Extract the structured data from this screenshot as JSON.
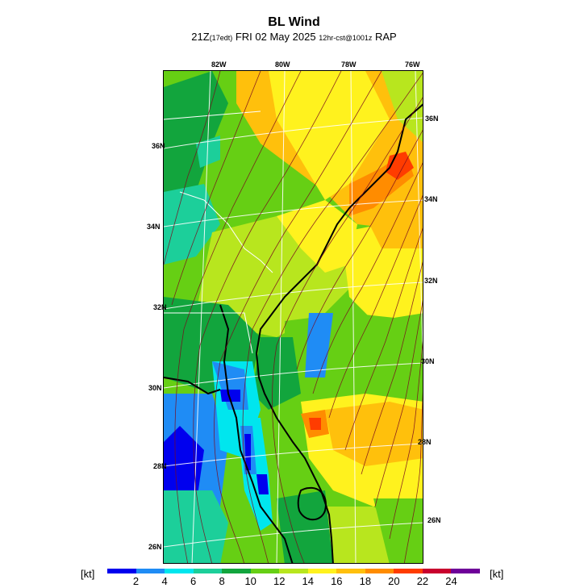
{
  "title": "BL Wind",
  "subtitle": {
    "valid": "21Z",
    "edt": "(17edt)",
    "date": "FRI 02 May 2025",
    "run": "12hr-cst@1001z",
    "model": "RAP"
  },
  "longitude_labels": [
    "82W",
    "80W",
    "78W",
    "76W"
  ],
  "latitude_labels_left": [
    "36N",
    "34N",
    "32N",
    "30N",
    "28N",
    "26N"
  ],
  "latitude_labels_right": [
    "36N",
    "34N",
    "32N",
    "30N",
    "28N",
    "26N"
  ],
  "colorbar": {
    "unit_label": "[kt]",
    "ticks": [
      "2",
      "4",
      "6",
      "8",
      "10",
      "12",
      "14",
      "16",
      "18",
      "20",
      "22",
      "24"
    ],
    "colors": [
      "#0000ee",
      "#1f8cf5",
      "#00e6ee",
      "#1ccf9a",
      "#12a53d",
      "#66cf14",
      "#b8e61e",
      "#fff21e",
      "#ffc00c",
      "#ff8c00",
      "#ff3c00",
      "#c8002d",
      "#6e0099"
    ]
  }
}
